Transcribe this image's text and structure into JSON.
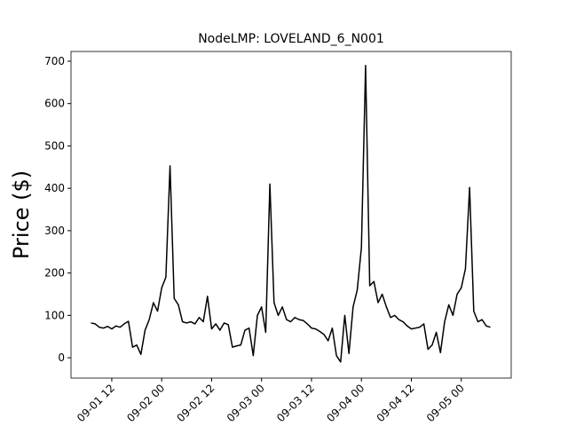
{
  "chart_data": {
    "type": "line",
    "title": "NodeLMP: LOVELAND_6_N001",
    "ylabel": "Price ($)",
    "x": [
      31,
      32,
      33,
      34,
      35,
      36,
      37,
      38,
      39,
      40,
      41,
      42,
      43,
      44,
      45,
      46,
      47,
      48,
      49,
      50,
      51,
      52,
      53,
      54,
      55,
      56,
      57,
      58,
      59,
      60,
      61,
      62,
      63,
      64,
      65,
      66,
      67,
      68,
      69,
      70,
      71,
      72,
      73,
      74,
      75,
      76,
      77,
      78,
      79,
      80,
      81,
      82,
      83,
      84,
      85,
      86,
      87,
      88,
      89,
      90,
      91,
      92,
      93,
      94,
      95,
      96,
      97,
      98,
      99,
      100,
      101,
      102,
      103,
      104,
      105,
      106,
      107,
      108,
      109,
      110,
      111,
      112,
      113,
      114,
      115,
      116,
      117,
      118,
      119,
      120,
      121,
      122,
      123,
      124,
      125,
      126,
      127
    ],
    "values": [
      82,
      80,
      72,
      70,
      74,
      68,
      75,
      72,
      80,
      86,
      25,
      30,
      8,
      65,
      90,
      130,
      110,
      165,
      190,
      453,
      140,
      125,
      85,
      82,
      85,
      80,
      95,
      85,
      145,
      68,
      80,
      65,
      82,
      78,
      25,
      28,
      30,
      65,
      70,
      5,
      100,
      120,
      60,
      410,
      130,
      100,
      120,
      90,
      85,
      95,
      90,
      88,
      80,
      70,
      68,
      62,
      55,
      40,
      70,
      5,
      -10,
      100,
      10,
      120,
      160,
      260,
      690,
      170,
      180,
      130,
      150,
      120,
      95,
      100,
      90,
      85,
      75,
      68,
      70,
      72,
      80,
      20,
      30,
      60,
      12,
      85,
      125,
      100,
      150,
      165,
      210,
      402,
      110,
      85,
      90,
      75,
      72
    ],
    "color": "#000000",
    "xlim": [
      26.2,
      132
    ],
    "ylim": [
      -48,
      723
    ],
    "xticks": [
      {
        "value": 36,
        "label": "09-01 12"
      },
      {
        "value": 48,
        "label": "09-02 00"
      },
      {
        "value": 60,
        "label": "09-02 12"
      },
      {
        "value": 72,
        "label": "09-03 00"
      },
      {
        "value": 84,
        "label": "09-03 12"
      },
      {
        "value": 96,
        "label": "09-04 00"
      },
      {
        "value": 108,
        "label": "09-04 12"
      },
      {
        "value": 120,
        "label": "09-05 00"
      }
    ],
    "yticks": [
      0,
      100,
      200,
      300,
      400,
      500,
      600,
      700
    ]
  }
}
